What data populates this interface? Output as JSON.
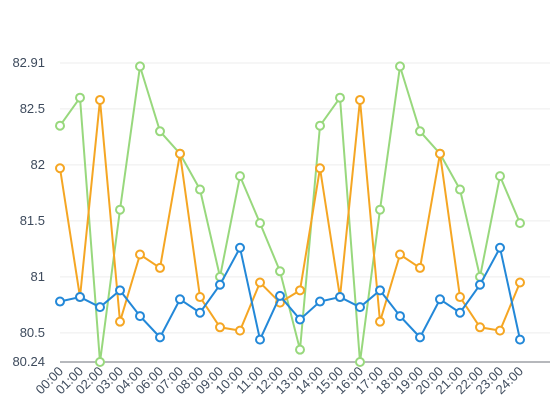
{
  "chart_data": {
    "type": "line",
    "categories": [
      "00:00",
      "01:00",
      "02:00",
      "03:00",
      "04:00",
      "06:00",
      "07:00",
      "08:00",
      "09:00",
      "10:00",
      "11:00",
      "12:00",
      "13:00",
      "14:00",
      "15:00",
      "16:00",
      "17:00",
      "18:00",
      "19:00",
      "20:00",
      "21:00",
      "22:00",
      "23:00",
      "24:00"
    ],
    "series": [
      {
        "color": "#98d87d",
        "values": [
          82.35,
          82.6,
          80.24,
          81.6,
          82.88,
          82.3,
          82.1,
          81.78,
          81.0,
          81.9,
          81.48,
          81.05,
          80.35,
          82.35,
          82.6,
          80.24,
          81.6,
          82.88,
          82.3,
          82.1,
          81.78,
          81.0,
          81.9,
          81.48
        ]
      },
      {
        "color": "#f5a623",
        "values": [
          81.97,
          80.82,
          82.58,
          80.6,
          81.2,
          81.08,
          82.1,
          80.82,
          80.55,
          80.52,
          80.95,
          80.77,
          80.88,
          81.97,
          80.82,
          82.58,
          80.6,
          81.2,
          81.08,
          82.1,
          80.82,
          80.55,
          80.52,
          80.95
        ]
      },
      {
        "color": "#2388d8",
        "values": [
          80.78,
          80.82,
          80.73,
          80.88,
          80.65,
          80.46,
          80.8,
          80.68,
          80.93,
          81.26,
          80.44,
          80.83,
          80.62,
          80.78,
          80.82,
          80.73,
          80.88,
          80.65,
          80.46,
          80.8,
          80.68,
          80.93,
          81.26,
          80.44
        ]
      }
    ],
    "ylim": [
      80.24,
      82.91
    ],
    "yticks": [
      80.24,
      80.5,
      81,
      81.5,
      82,
      82.5,
      82.91
    ],
    "grid": true
  }
}
